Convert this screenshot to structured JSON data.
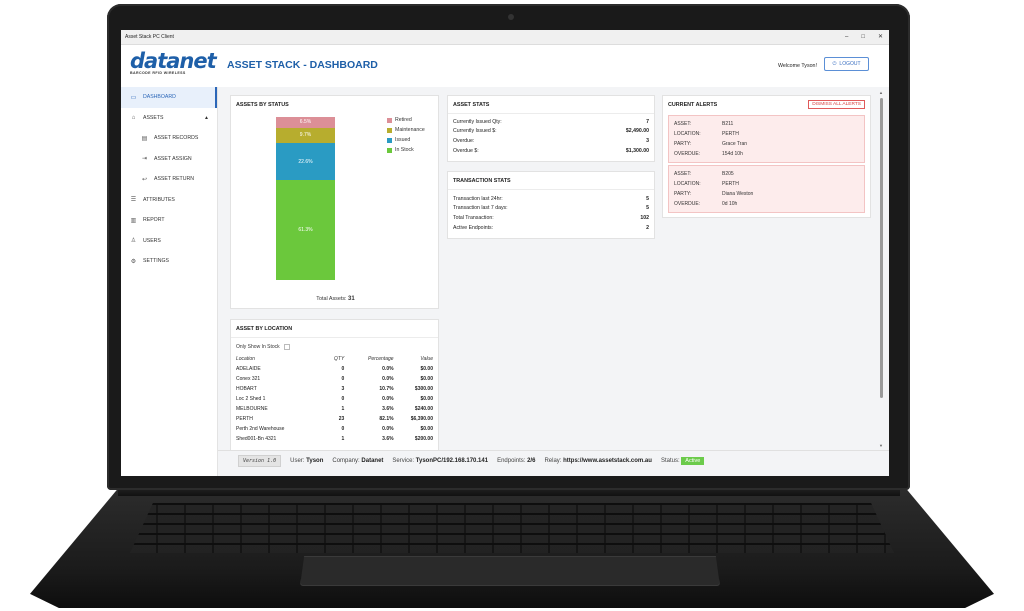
{
  "window": {
    "title": "Asset Stack PC Client",
    "controls": [
      "–",
      "□",
      "✕"
    ]
  },
  "header": {
    "logo_text": "datanet",
    "logo_sub": "BARCODE RFID WIRELESS",
    "page_title": "ASSET STACK - DASHBOARD",
    "welcome": "Welcome Tyson!",
    "logout_label": "LOGOUT"
  },
  "sidebar": {
    "items": [
      {
        "label": "DASHBOARD",
        "icon": "monitor-icon"
      },
      {
        "label": "ASSETS",
        "icon": "bank-icon"
      },
      {
        "label": "ASSET RECORDS",
        "icon": "records-icon"
      },
      {
        "label": "ASSET ASSIGN",
        "icon": "assign-icon"
      },
      {
        "label": "ASSET RETURN",
        "icon": "return-icon"
      },
      {
        "label": "ATTRIBUTES",
        "icon": "list-icon"
      },
      {
        "label": "REPORT",
        "icon": "chart-icon"
      },
      {
        "label": "USERS",
        "icon": "user-icon"
      },
      {
        "label": "SETTINGS",
        "icon": "gear-icon"
      }
    ]
  },
  "assets_by_status": {
    "title": "ASSETS BY STATUS",
    "total_label": "Total Assets:",
    "total_value": "31",
    "legend": [
      "Retired",
      "Maintenance",
      "Issued",
      "In Stock"
    ]
  },
  "chart_data": {
    "type": "bar",
    "stacked": true,
    "series": [
      {
        "name": "Retired",
        "value": 6.5,
        "label": "6.5%",
        "color": "#dc8f97"
      },
      {
        "name": "Maintenance",
        "value": 9.7,
        "label": "9.7%",
        "color": "#b7ad2e"
      },
      {
        "name": "Issued",
        "value": 22.6,
        "label": "22.6%",
        "color": "#2a9bc3"
      },
      {
        "name": "In Stock",
        "value": 61.3,
        "label": "61.3%",
        "color": "#6bc83c"
      }
    ]
  },
  "asset_stats": {
    "title": "ASSET STATS",
    "rows": [
      {
        "label": "Currently Issued Qty:",
        "value": "7"
      },
      {
        "label": "Currently Issued $:",
        "value": "$2,490.00"
      },
      {
        "label": "Overdue:",
        "value": "3"
      },
      {
        "label": "Overdue $:",
        "value": "$1,300.00"
      }
    ]
  },
  "transaction_stats": {
    "title": "TRANSACTION STATS",
    "rows": [
      {
        "label": "Transaction last 24hr:",
        "value": "5"
      },
      {
        "label": "Transaction last 7 days:",
        "value": "5"
      },
      {
        "label": "Total Transaction:",
        "value": "102"
      },
      {
        "label": "Active Endpoints:",
        "value": "2"
      }
    ]
  },
  "current_alerts": {
    "title": "CURRENT ALERTS",
    "dismiss_label": "DISMISS ALL ALERTS",
    "keys": [
      "ASSET:",
      "LOCATION:",
      "PARTY:",
      "OVERDUE:"
    ],
    "alerts": [
      {
        "asset": "B211",
        "location": "PERTH",
        "party": "Grace Tran",
        "overdue": "154d 10h"
      },
      {
        "asset": "B205",
        "location": "PERTH",
        "party": "Diana Weston",
        "overdue": "0d 10h"
      }
    ]
  },
  "asset_by_location": {
    "title": "ASSET BY LOCATION",
    "filter_label": "Only Show In Stock",
    "columns": [
      "Location",
      "QTY",
      "Percentage",
      "Value"
    ],
    "rows": [
      [
        "ADELAIDE",
        "0",
        "0.0%",
        "$0.00"
      ],
      [
        "Conex 321",
        "0",
        "0.0%",
        "$0.00"
      ],
      [
        "HOBART",
        "3",
        "10.7%",
        "$300.00"
      ],
      [
        "Loc 2 Shed 1",
        "0",
        "0.0%",
        "$0.00"
      ],
      [
        "MELBOURNE",
        "1",
        "3.6%",
        "$240.00"
      ],
      [
        "PERTH",
        "23",
        "82.1%",
        "$6,390.00"
      ],
      [
        "Perth 2nd Warehouse",
        "0",
        "0.0%",
        "$0.00"
      ],
      [
        "Shed001-Bn 4321",
        "1",
        "3.6%",
        "$200.00"
      ]
    ]
  },
  "statusbar": {
    "version": "Version 1.0",
    "user_label": "User:",
    "user": "Tyson",
    "company_label": "Company:",
    "company": "Datanet",
    "service_label": "Service:",
    "service": "TysonPC/192.168.170.141",
    "endpoints_label": "Endpoints:",
    "endpoints": "2/6",
    "relay_label": "Relay:",
    "relay": "https://www.assetstack.com.au",
    "status_label": "Status:",
    "status": "Active"
  }
}
